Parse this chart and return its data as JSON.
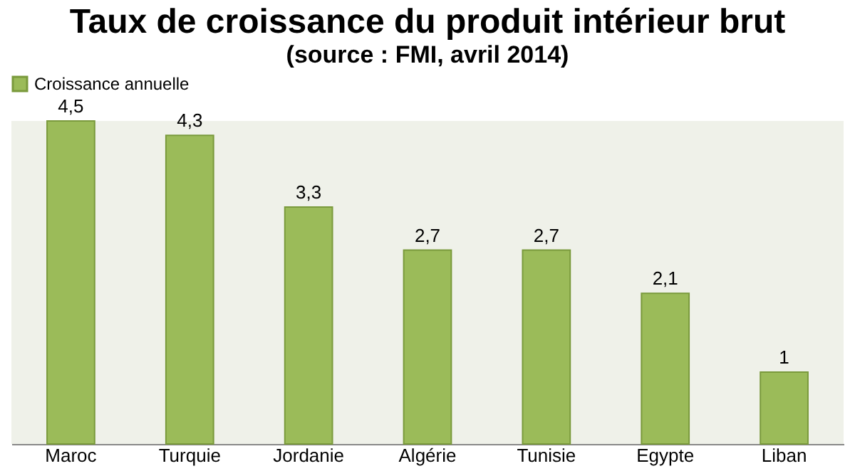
{
  "chart_data": {
    "type": "bar",
    "title": "Taux de croissance du produit intérieur brut",
    "subtitle": "(source : FMI, avril 2014)",
    "categories": [
      "Maroc",
      "Turquie",
      "Jordanie",
      "Algérie",
      "Tunisie",
      "Egypte",
      "Liban"
    ],
    "series": [
      {
        "name": "Croissance annuelle",
        "color": "#9bbb59",
        "values": [
          4.5,
          4.3,
          3.3,
          2.7,
          2.7,
          2.1,
          1
        ],
        "value_labels": [
          "4,5",
          "4,3",
          "3,3",
          "2,7",
          "2,7",
          "2,1",
          "1"
        ]
      }
    ],
    "legend": "top",
    "grid": false
  }
}
